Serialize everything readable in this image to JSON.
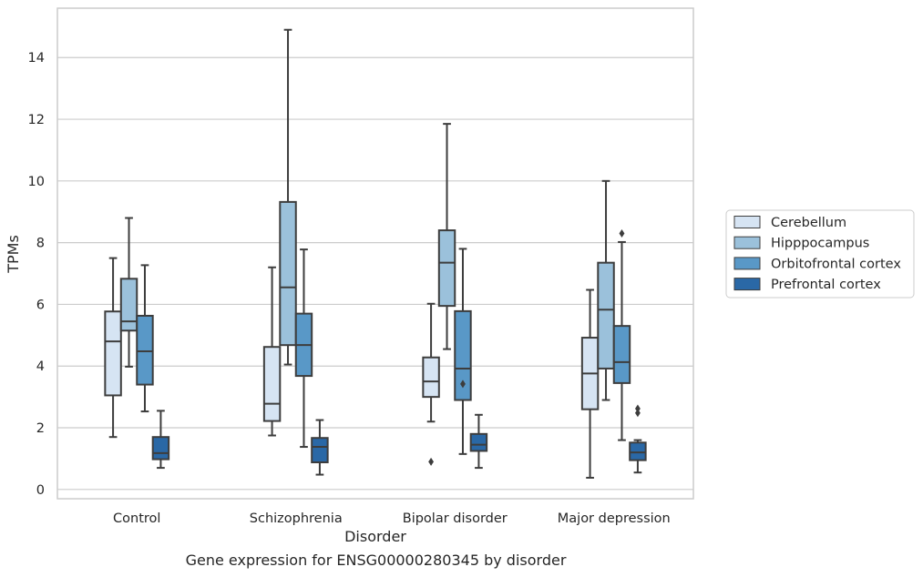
{
  "chart_data": {
    "type": "box",
    "ylabel": "TPMs",
    "xlabel": "Disorder",
    "caption": "Gene expression for ENSG00000280345 by disorder",
    "ylim": [
      -0.3,
      15.6
    ],
    "yticks": [
      0,
      2,
      4,
      6,
      8,
      10,
      12,
      14
    ],
    "grid": "horizontal",
    "legend_position": "right",
    "categories": [
      "Control",
      "Schizophrenia",
      "Bipolar disorder",
      "Major depression"
    ],
    "series": [
      {
        "name": "Cerebellum",
        "color": "#d6e4f3",
        "boxes": [
          {
            "whislo": 1.7,
            "q1": 3.05,
            "med": 4.8,
            "q3": 5.77,
            "whishi": 7.5,
            "fliers": []
          },
          {
            "whislo": 1.75,
            "q1": 2.22,
            "med": 2.78,
            "q3": 4.62,
            "whishi": 7.2,
            "fliers": []
          },
          {
            "whislo": 2.2,
            "q1": 3.0,
            "med": 3.5,
            "q3": 4.28,
            "whishi": 6.02,
            "fliers": [
              0.9
            ]
          },
          {
            "whislo": 0.38,
            "q1": 2.6,
            "med": 3.76,
            "q3": 4.92,
            "whishi": 6.47,
            "fliers": []
          }
        ]
      },
      {
        "name": "Hipppocampus",
        "color": "#9bc1db",
        "boxes": [
          {
            "whislo": 3.98,
            "q1": 5.15,
            "med": 5.45,
            "q3": 6.83,
            "whishi": 8.8,
            "fliers": []
          },
          {
            "whislo": 4.05,
            "q1": 4.68,
            "med": 6.55,
            "q3": 9.32,
            "whishi": 14.9,
            "fliers": []
          },
          {
            "whislo": 4.55,
            "q1": 5.95,
            "med": 7.35,
            "q3": 8.4,
            "whishi": 11.85,
            "fliers": []
          },
          {
            "whislo": 2.9,
            "q1": 3.92,
            "med": 5.83,
            "q3": 7.35,
            "whishi": 10.0,
            "fliers": []
          }
        ]
      },
      {
        "name": "Orbitofrontal cortex",
        "color": "#5998c7",
        "boxes": [
          {
            "whislo": 2.53,
            "q1": 3.4,
            "med": 4.48,
            "q3": 5.63,
            "whishi": 7.27,
            "fliers": []
          },
          {
            "whislo": 1.38,
            "q1": 3.68,
            "med": 4.68,
            "q3": 5.7,
            "whishi": 7.78,
            "fliers": []
          },
          {
            "whislo": 1.15,
            "q1": 2.9,
            "med": 3.92,
            "q3": 5.78,
            "whishi": 7.8,
            "fliers": [
              3.42
            ]
          },
          {
            "whislo": 1.6,
            "q1": 3.45,
            "med": 4.13,
            "q3": 5.3,
            "whishi": 8.02,
            "fliers": [
              8.3
            ]
          }
        ]
      },
      {
        "name": "Prefrontal cortex",
        "color": "#2a68a6",
        "boxes": [
          {
            "whislo": 0.7,
            "q1": 0.98,
            "med": 1.18,
            "q3": 1.7,
            "whishi": 2.55,
            "fliers": []
          },
          {
            "whislo": 0.48,
            "q1": 0.88,
            "med": 1.38,
            "q3": 1.67,
            "whishi": 2.25,
            "fliers": []
          },
          {
            "whislo": 0.7,
            "q1": 1.25,
            "med": 1.45,
            "q3": 1.8,
            "whishi": 2.42,
            "fliers": []
          },
          {
            "whislo": 0.55,
            "q1": 0.95,
            "med": 1.2,
            "q3": 1.52,
            "whishi": 1.6,
            "fliers": [
              2.48,
              2.62
            ]
          }
        ]
      }
    ]
  }
}
